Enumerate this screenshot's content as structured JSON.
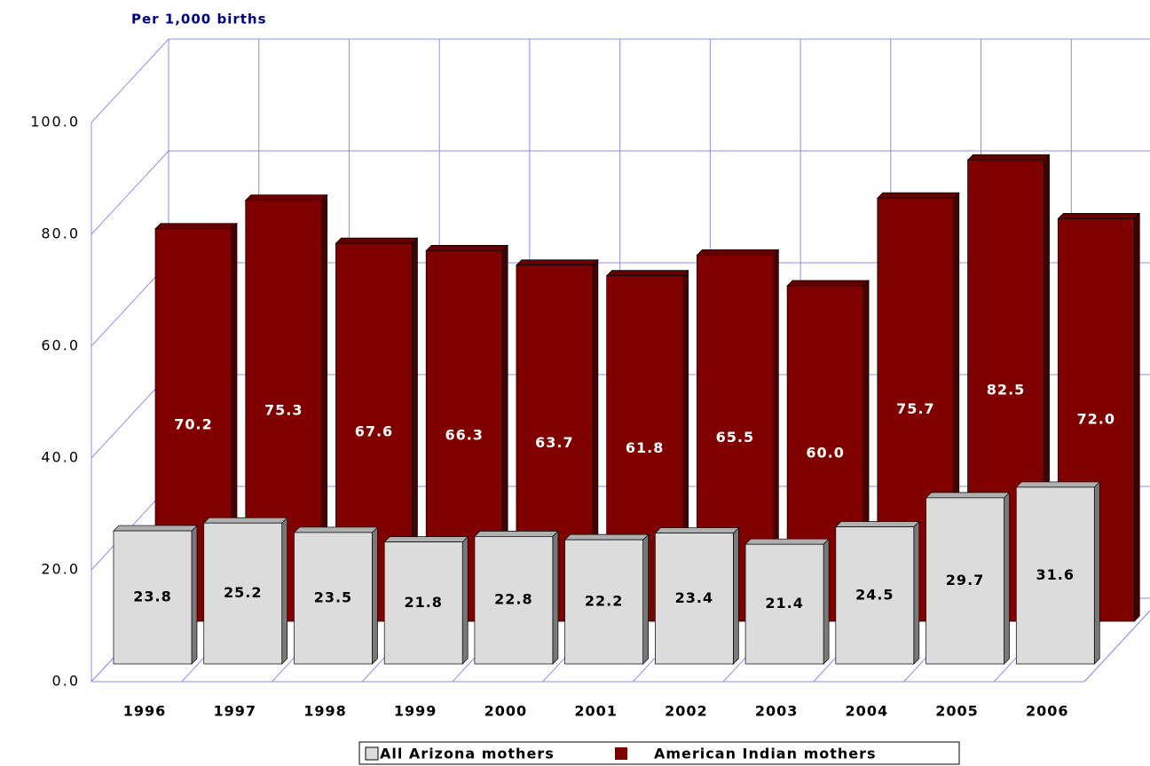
{
  "chart_data": {
    "type": "bar3d",
    "subtitle": "Per 1,000 births",
    "categories": [
      "1996",
      "1997",
      "1998",
      "1999",
      "2000",
      "2001",
      "2002",
      "2003",
      "2004",
      "2005",
      "2006"
    ],
    "series": [
      {
        "name": "All Arizona mothers",
        "color": "#dcdcdc",
        "values": [
          23.8,
          25.2,
          23.5,
          21.8,
          22.8,
          22.2,
          23.4,
          21.4,
          24.5,
          29.7,
          31.6
        ],
        "value_labels": [
          "23.8",
          "25.2",
          "23.5",
          "21.8",
          "22.8",
          "22.2",
          "23.4",
          "21.4",
          "24.5",
          "29.7",
          "31.6"
        ]
      },
      {
        "name": "American Indian mothers",
        "color": "#800000",
        "values": [
          70.2,
          75.3,
          67.6,
          66.3,
          63.7,
          61.8,
          65.5,
          60.0,
          75.7,
          82.5,
          72.0
        ],
        "value_labels": [
          "70.2",
          "75.3",
          "67.6",
          "66.3",
          "63.7",
          "61.8",
          "65.5",
          "60.0",
          "75.7",
          "82.5",
          "72.0"
        ]
      }
    ],
    "ylim": [
      0,
      100
    ],
    "yticks": [
      {
        "value": 0,
        "label": "0.0"
      },
      {
        "value": 20,
        "label": "20.0"
      },
      {
        "value": 40,
        "label": "40.0"
      },
      {
        "value": 60,
        "label": "60.0"
      },
      {
        "value": 80,
        "label": "80.0"
      },
      {
        "value": 100,
        "label": "100.0"
      }
    ],
    "grid": true,
    "legend": "bottom"
  }
}
